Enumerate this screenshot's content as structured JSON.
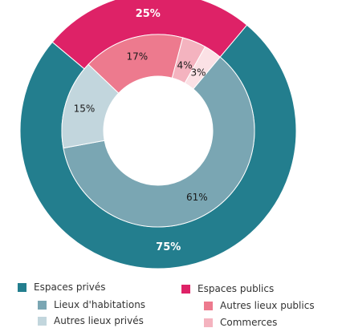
{
  "chart_data": {
    "type": "pie",
    "variant": "nested-donut",
    "outer": [
      {
        "label": "Espaces privés",
        "value_label": "75%",
        "value": 75,
        "color": "#237e8e"
      },
      {
        "label": "Espaces publics",
        "value_label": "25%",
        "value": 25,
        "color": "#de2267"
      }
    ],
    "inner": [
      {
        "label": "Lieux d'habitations",
        "value_label": "61%",
        "value": 61,
        "color": "#7aa6b3"
      },
      {
        "label": "Autres lieux privés",
        "value_label": "15%",
        "value": 15,
        "color": "#c2d6dd"
      },
      {
        "label": "Autres lieux publics",
        "value_label": "17%",
        "value": 17,
        "color": "#ed7a8e"
      },
      {
        "label": "Commerces",
        "value_label": "4%",
        "value": 4,
        "color": "#f4b3bf"
      },
      {
        "label": "",
        "value_label": "3%",
        "value": 3,
        "color": "#fbe1e5"
      }
    ],
    "legend": {
      "placement": "bottom",
      "items": [
        {
          "label": "Espaces privés",
          "color": "#237e8e"
        },
        {
          "label": "Lieux d'habitations",
          "color": "#7aa6b3"
        },
        {
          "label": "Autres lieux privés",
          "color": "#c2d6dd"
        },
        {
          "label": "Espaces publics",
          "color": "#de2267"
        },
        {
          "label": "Autres lieux publics",
          "color": "#ed7a8e"
        },
        {
          "label": "Commerces",
          "color": "#f4b3bf"
        }
      ]
    }
  }
}
